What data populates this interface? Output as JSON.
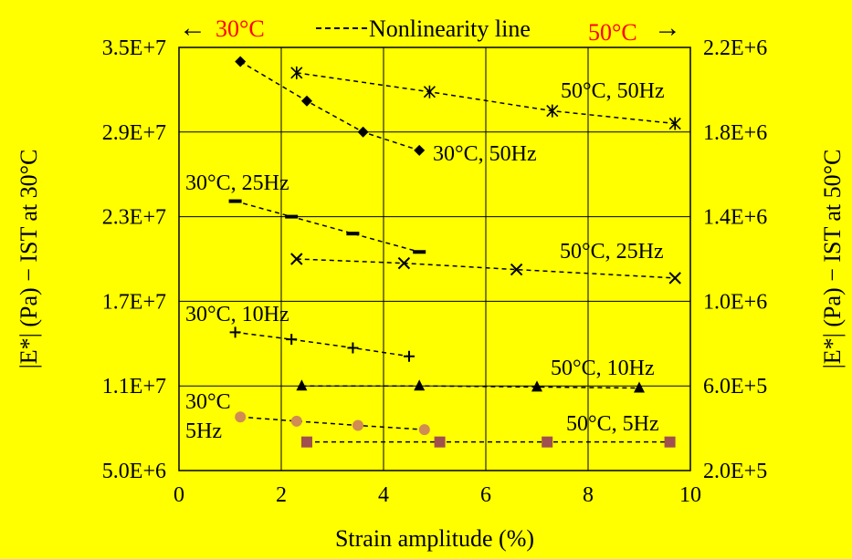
{
  "chart_data": {
    "type": "scatter",
    "title": "",
    "xlabel": "Strain amplitude (%)",
    "ylabel_left": "|E*| (Pa) − IST at 30°C",
    "ylabel_right": "|E*| (Pa) − IST at 50°C",
    "xlim": [
      0,
      10
    ],
    "xticks": [
      "0",
      "2",
      "4",
      "6",
      "8",
      "10"
    ],
    "ylim_left": [
      5000000,
      35000000
    ],
    "yticks_left": [
      "5.0E+6",
      "1.1E+7",
      "1.7E+7",
      "2.3E+7",
      "2.9E+7",
      "3.5E+7"
    ],
    "ylim_right": [
      200000,
      2200000
    ],
    "yticks_right": [
      "2.0E+5",
      "6.0E+5",
      "1.0E+6",
      "1.4E+6",
      "1.8E+6",
      "2.2E+6"
    ],
    "grid": true,
    "legend": {
      "left_text": "30°C",
      "left_arrow": "←",
      "line_text": "Nonlinearity line",
      "right_text": "50°C",
      "right_arrow": "→"
    },
    "series": [
      {
        "name": "30°C, 50Hz",
        "axis": "left",
        "marker": "diamond",
        "color": "#000000",
        "x": [
          1.2,
          2.5,
          3.6,
          4.7
        ],
        "y": [
          34000000,
          31200000,
          29000000,
          27700000
        ]
      },
      {
        "name": "30°C, 25Hz",
        "axis": "left",
        "marker": "dash",
        "color": "#000000",
        "x": [
          1.1,
          2.2,
          3.4,
          4.7
        ],
        "y": [
          24100000,
          23000000,
          21800000,
          20500000
        ]
      },
      {
        "name": "30°C, 10Hz",
        "axis": "left",
        "marker": "plus",
        "color": "#000000",
        "x": [
          1.1,
          2.2,
          3.4,
          4.5
        ],
        "y": [
          14800000,
          14300000,
          13700000,
          13100000
        ]
      },
      {
        "name": "30°C 5Hz",
        "axis": "left",
        "marker": "circle",
        "color": "#d08c52",
        "x": [
          1.2,
          2.3,
          3.5,
          4.8
        ],
        "y": [
          8800000,
          8500000,
          8200000,
          7900000
        ]
      },
      {
        "name": "50°C, 50Hz",
        "axis": "right",
        "marker": "star",
        "color": "#000000",
        "x": [
          2.3,
          4.9,
          7.3,
          9.7
        ],
        "y": [
          2080000,
          1990000,
          1900000,
          1840000
        ]
      },
      {
        "name": "50°C, 25Hz",
        "axis": "right",
        "marker": "x",
        "color": "#000000",
        "x": [
          2.3,
          4.4,
          6.6,
          9.7
        ],
        "y": [
          1200000,
          1180000,
          1150000,
          1110000
        ]
      },
      {
        "name": "50°C, 10Hz",
        "axis": "right",
        "marker": "triangle",
        "color": "#000000",
        "x": [
          2.4,
          4.7,
          7.0,
          9.0
        ],
        "y": [
          600000,
          600000,
          595000,
          590000
        ]
      },
      {
        "name": "50°C, 5Hz",
        "axis": "right",
        "marker": "square",
        "color": "#a0504e",
        "x": [
          2.5,
          5.1,
          7.2,
          9.6
        ],
        "y": [
          335000,
          335000,
          335000,
          335000
        ]
      }
    ],
    "annotations": [
      {
        "text": "30°C, 50Hz"
      },
      {
        "text": "30°C, 25Hz"
      },
      {
        "text": "30°C, 10Hz"
      },
      {
        "text": "30°C"
      },
      {
        "text": "5Hz"
      },
      {
        "text": "50°C, 50Hz"
      },
      {
        "text": "50°C, 25Hz"
      },
      {
        "text": "50°C, 10Hz"
      },
      {
        "text": "50°C, 5Hz"
      }
    ],
    "colors": {
      "background": "#ffff00",
      "accent_red": "#ff0000",
      "axis": "#000000"
    }
  }
}
